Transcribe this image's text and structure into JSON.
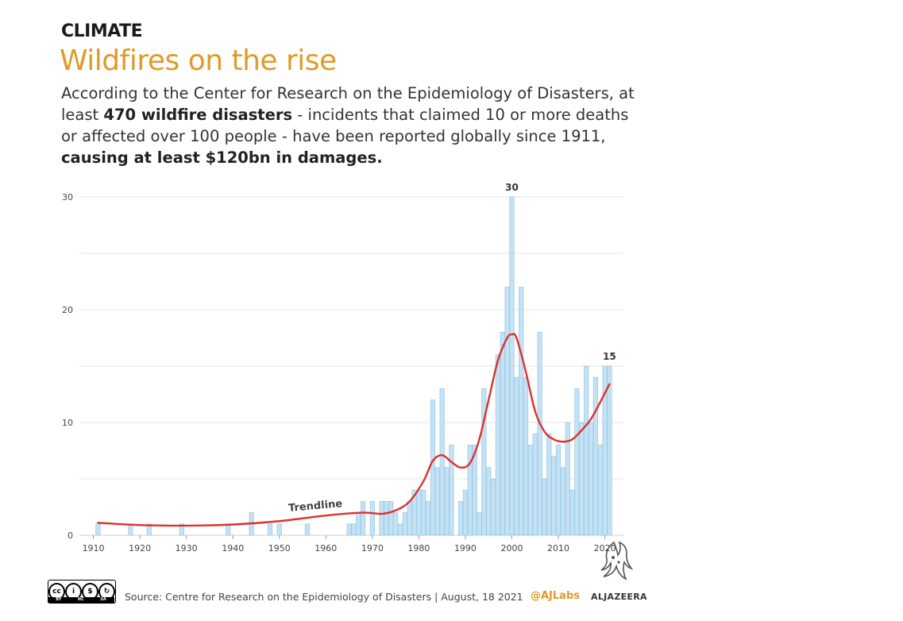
{
  "header": {
    "kicker": "CLIMATE",
    "title": "Wildfires on the rise",
    "subtitle_parts": [
      {
        "text": "According to the Center for Research on the Epidemiology of Disasters, at least ",
        "bold": false
      },
      {
        "text": "470 wildfire disasters",
        "bold": true
      },
      {
        "text": " - incidents that claimed 10 or more deaths or affected over 100 people - have been reported globally since 1911, ",
        "bold": false
      },
      {
        "text": "causing at least $120bn in damages.",
        "bold": true
      }
    ]
  },
  "colors": {
    "title": "#e09a2a",
    "bar_fill": "#c5e2f5",
    "bar_stroke": "#9ccbe8",
    "trend": "#e0302a",
    "grid": "#e6e6e6",
    "axis_text": "#444444"
  },
  "chart_data": {
    "type": "bar",
    "xlabel": "",
    "ylabel": "",
    "xlim": [
      1907,
      2024
    ],
    "ylim": [
      0,
      30
    ],
    "yticks": [
      0,
      10,
      20,
      30
    ],
    "xticks": [
      1910,
      1920,
      1930,
      1940,
      1950,
      1960,
      1970,
      1980,
      1990,
      2000,
      2010,
      2020
    ],
    "grid": true,
    "x": [
      1911,
      1918,
      1922,
      1929,
      1939,
      1944,
      1948,
      1950,
      1956,
      1965,
      1966,
      1967,
      1968,
      1970,
      1972,
      1973,
      1974,
      1975,
      1976,
      1977,
      1978,
      1979,
      1980,
      1981,
      1982,
      1983,
      1984,
      1985,
      1986,
      1987,
      1989,
      1990,
      1991,
      1992,
      1993,
      1994,
      1995,
      1996,
      1997,
      1998,
      1999,
      2000,
      2001,
      2002,
      2003,
      2004,
      2005,
      2006,
      2007,
      2008,
      2009,
      2010,
      2011,
      2012,
      2013,
      2014,
      2015,
      2016,
      2017,
      2018,
      2019,
      2020,
      2021
    ],
    "values": [
      1,
      1,
      1,
      1,
      1,
      2,
      1,
      1,
      1,
      1,
      1,
      2,
      3,
      3,
      3,
      3,
      3,
      2,
      1,
      2,
      3,
      4,
      4,
      4,
      3,
      12,
      6,
      13,
      6,
      8,
      3,
      4,
      8,
      8,
      2,
      13,
      6,
      5,
      16,
      18,
      22,
      30,
      14,
      22,
      14,
      8,
      9,
      18,
      5,
      9,
      7,
      8,
      6,
      10,
      4,
      13,
      10,
      15,
      10,
      14,
      8,
      15,
      15
    ],
    "annotations": [
      {
        "x": 2000,
        "y": 30,
        "text": "30"
      },
      {
        "x": 2021,
        "y": 15,
        "text": "15"
      }
    ],
    "trendline": {
      "label": "Trendline",
      "x": [
        1911,
        1920,
        1930,
        1940,
        1950,
        1960,
        1968,
        1972,
        1975,
        1978,
        1981,
        1983,
        1985,
        1987,
        1989,
        1991,
        1993,
        1995,
        1997,
        1999,
        2000,
        2001,
        2003,
        2005,
        2007,
        2009,
        2011,
        2013,
        2015,
        2017,
        2019,
        2021
      ],
      "y": [
        1.1,
        0.9,
        0.85,
        0.95,
        1.25,
        1.75,
        2.0,
        1.9,
        2.2,
        3.0,
        4.8,
        6.6,
        7.1,
        6.5,
        6.0,
        6.4,
        8.5,
        12.0,
        15.5,
        17.5,
        17.8,
        17.5,
        14.5,
        11.0,
        9.2,
        8.5,
        8.3,
        8.5,
        9.3,
        10.3,
        11.8,
        13.4
      ]
    }
  },
  "footer": {
    "cc": [
      "BY",
      "NC",
      "SA"
    ],
    "source": "Source: Centre for Research on the Epidemiology of Disasters | August, 18 2021",
    "handle": "@AJLabs",
    "brand": "ALJAZEERA"
  }
}
